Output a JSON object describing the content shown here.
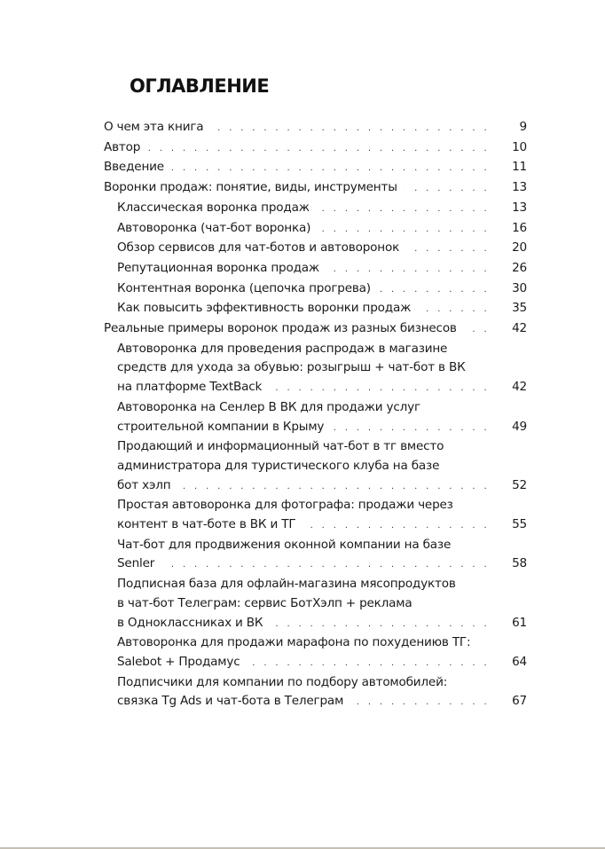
{
  "title": "ОГЛАВЛЕНИЕ",
  "entries": [
    {
      "level": 1,
      "lines": [
        "О чем эта книга"
      ],
      "page": "9"
    },
    {
      "level": 1,
      "lines": [
        "Автор"
      ],
      "page": "10"
    },
    {
      "level": 1,
      "lines": [
        "Введение"
      ],
      "page": "11"
    },
    {
      "level": 1,
      "lines": [
        "Воронки продаж: понятие, виды, инструменты"
      ],
      "page": "13"
    },
    {
      "level": 2,
      "lines": [
        "Классическая воронка продаж"
      ],
      "page": "13"
    },
    {
      "level": 2,
      "lines": [
        "Автоворонка (чат-бот воронка)"
      ],
      "page": "16"
    },
    {
      "level": 2,
      "lines": [
        "Обзор сервисов для чат-ботов и автоворонок"
      ],
      "page": "20"
    },
    {
      "level": 2,
      "lines": [
        "Репутационная воронка продаж"
      ],
      "page": "26"
    },
    {
      "level": 2,
      "lines": [
        "Контентная воронка (цепочка прогрева)"
      ],
      "page": "30"
    },
    {
      "level": 2,
      "lines": [
        "Как повысить эффективность воронки продаж"
      ],
      "page": "35"
    },
    {
      "level": 1,
      "lines": [
        "Реальные примеры воронок продаж из разных бизнесов"
      ],
      "page": "42"
    },
    {
      "level": 2,
      "lines": [
        "Автоворонка для проведения распродаж в магазине",
        "средств для ухода за обувью: розыгрыш + чат-бот в ВК",
        "на платформе TextBack"
      ],
      "page": "42"
    },
    {
      "level": 2,
      "lines": [
        "Автоворонка на Сенлер В ВК для продажи услуг",
        "строительной компании в Крыму"
      ],
      "page": "49"
    },
    {
      "level": 2,
      "lines": [
        "Продающий и информационный чат-бот в тг вместо",
        "администратора для туристического клуба на базе",
        "бот хэлп"
      ],
      "page": "52"
    },
    {
      "level": 2,
      "lines": [
        "Простая автоворонка для фотографа: продажи через",
        "контент в чат-боте в ВК и ТГ"
      ],
      "page": "55"
    },
    {
      "level": 2,
      "lines": [
        "Чат-бот для продвижения оконной компании на базе",
        "Senler"
      ],
      "page": "58"
    },
    {
      "level": 2,
      "lines": [
        "Подписная база для офлайн-магазина мясопродуктов",
        "в чат-бот Телеграм: сервис БотХэлп + реклама",
        "в Одноклассниках и ВК"
      ],
      "page": "61"
    },
    {
      "level": 2,
      "lines": [
        "Автоворонка для продажи марафона по похудениюв ТГ:",
        "Salebot + Продамус"
      ],
      "page": "64"
    },
    {
      "level": 2,
      "lines": [
        "Подписчики для компании по подбору автомобилей:",
        "связка Tg Ads и чат-бота в Телеграм"
      ],
      "page": "67"
    }
  ]
}
